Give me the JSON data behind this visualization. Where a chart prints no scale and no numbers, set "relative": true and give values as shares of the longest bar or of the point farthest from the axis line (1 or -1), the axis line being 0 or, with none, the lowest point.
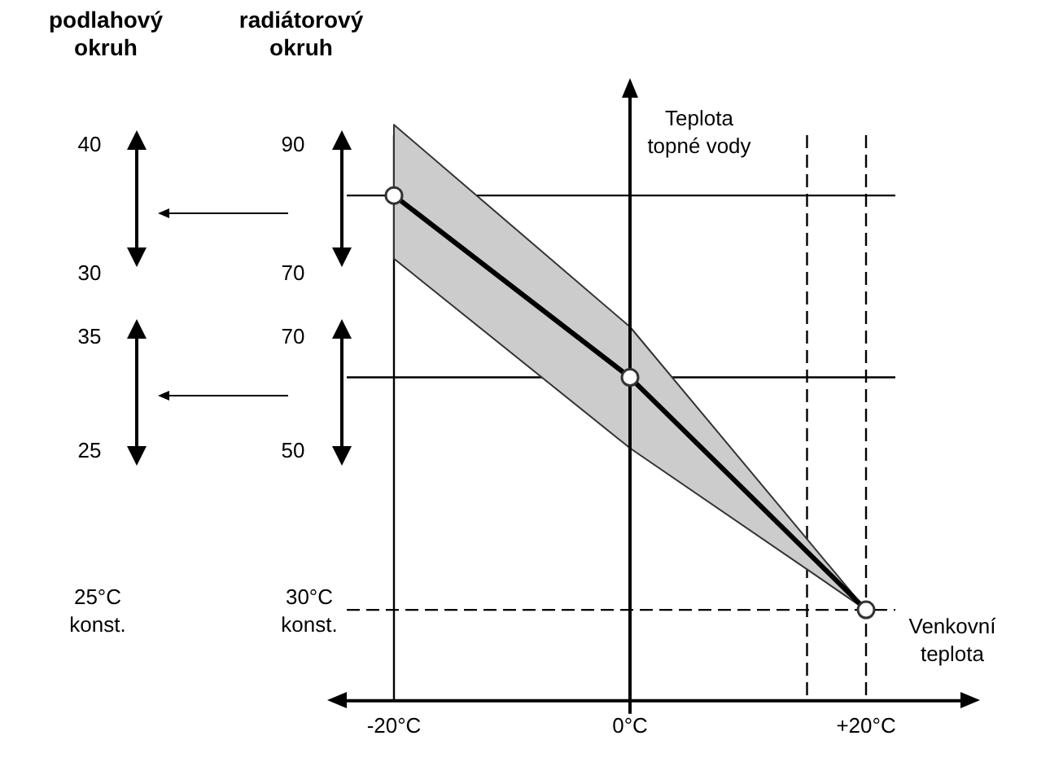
{
  "chart_data": {
    "type": "line",
    "relative": true,
    "x": [
      -20,
      0,
      20
    ],
    "xlim": [
      -24,
      28
    ],
    "xticks": [
      {
        "value": -20,
        "label": "-20°C"
      },
      {
        "value": 0,
        "label": "0°C"
      },
      {
        "value": 20,
        "label": "+20°C"
      }
    ],
    "series": [
      {
        "color": "#000000",
        "values": [
          1,
          0.64,
          0.18
        ],
        "lower": [
          0.875,
          0.5,
          0.18
        ],
        "upper": [
          1.14,
          0.74,
          0.18
        ]
      }
    ],
    "marker": "circle",
    "line_style": "solid",
    "grid": false,
    "legend": false,
    "ref_lines": [
      {
        "axis": "y",
        "value": 1,
        "color": "#000000",
        "line_style": "solid"
      },
      {
        "axis": "y",
        "value": 0.64,
        "color": "#000000",
        "line_style": "solid"
      },
      {
        "axis": "y",
        "value": 0.18,
        "color": "#000000",
        "line_style": "dashed"
      },
      {
        "axis": "x",
        "value": -20,
        "color": "#000000",
        "line_style": "solid"
      },
      {
        "axis": "x",
        "value": 15,
        "color": "#000000",
        "line_style": "dashed"
      },
      {
        "axis": "x",
        "value": 20,
        "color": "#000000",
        "line_style": "dashed"
      }
    ],
    "annotations": [
      "podlahový okruh",
      "radiátorový okruh",
      "40",
      "30",
      "35",
      "25",
      "90",
      "70",
      "70",
      "50",
      "25°C konst.",
      "30°C konst.",
      "Teplota topné vody",
      "Venkovní teplota"
    ]
  }
}
